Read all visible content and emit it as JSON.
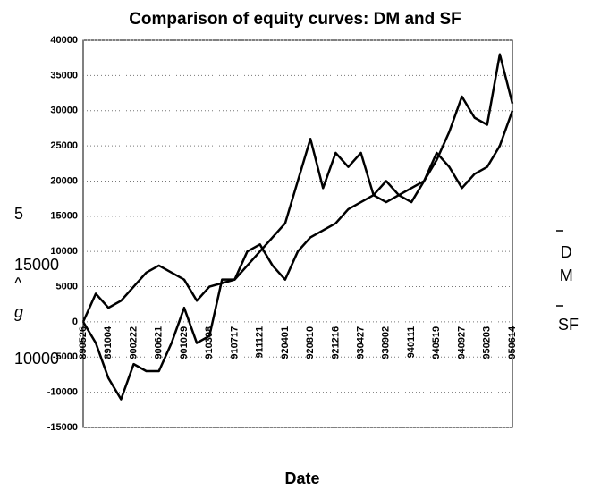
{
  "chart_data": {
    "type": "line",
    "title": "Comparison of equity curves: DM and SF",
    "x_label": "Date",
    "y_label_fragments": [
      "5",
      "15000",
      "^",
      "g",
      "10000"
    ],
    "categories": [
      "890526",
      null,
      "891004",
      null,
      "900222",
      null,
      "900621",
      null,
      "901029",
      null,
      "910308",
      null,
      "910717",
      null,
      "911121",
      null,
      "920401",
      null,
      "920810",
      null,
      "921216",
      null,
      "930427",
      null,
      "930902",
      null,
      "940111",
      null,
      "940519",
      null,
      "940927",
      null,
      "950203",
      null,
      "950614"
    ],
    "series": [
      {
        "name": "DM",
        "color": "#000000",
        "values": [
          0,
          4000,
          2000,
          3000,
          5000,
          7000,
          8000,
          7000,
          6000,
          3000,
          5000,
          5500,
          6000,
          8000,
          10000,
          12000,
          14000,
          20000,
          26000,
          19000,
          24000,
          22000,
          24000,
          18000,
          17000,
          18000,
          19000,
          20000,
          23000,
          27000,
          32000,
          29000,
          28000,
          38000,
          31000
        ]
      },
      {
        "name": "SF",
        "color": "#000000",
        "values": [
          0,
          -3000,
          -8000,
          -11000,
          -6000,
          -7000,
          -7000,
          -3000,
          2000,
          -3000,
          -2000,
          6000,
          6000,
          10000,
          11000,
          8000,
          6000,
          10000,
          12000,
          13000,
          14000,
          16000,
          17000,
          18000,
          20000,
          18000,
          17000,
          20000,
          24000,
          22000,
          19000,
          21000,
          22000,
          25000,
          30000
        ]
      }
    ],
    "ylim": [
      -15000,
      40000
    ],
    "yticks": [
      -15000,
      -10000,
      -5000,
      0,
      5000,
      10000,
      15000,
      20000,
      25000,
      30000,
      35000,
      40000
    ],
    "grid": true,
    "legend": "right"
  }
}
